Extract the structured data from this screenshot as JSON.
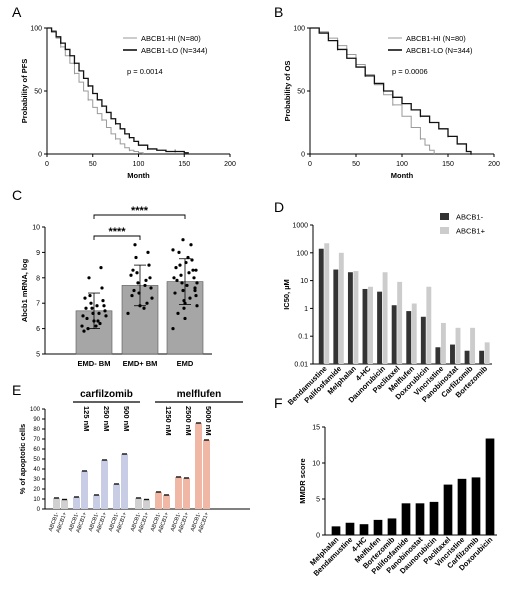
{
  "panels": {
    "a": "A",
    "b": "B",
    "c": "C",
    "d": "D",
    "e": "E",
    "f": "F"
  },
  "chart_data": [
    {
      "id": "A",
      "type": "line",
      "xlabel": "Month",
      "ylabel": "Probability of PFS",
      "xlim": [
        0,
        200
      ],
      "ylim": [
        0,
        100
      ],
      "xticks": [
        0,
        50,
        100,
        150,
        200
      ],
      "yticks": [
        0,
        50,
        100
      ],
      "annotation": "p = 0.0014",
      "legend_position": "top-right",
      "series": [
        {
          "name": "ABCB1-HI (N=80)",
          "color": "#9a9a9a",
          "x": [
            0,
            5,
            10,
            15,
            20,
            25,
            30,
            35,
            40,
            45,
            50,
            55,
            60,
            65,
            70,
            75,
            80,
            85,
            90,
            95,
            100,
            105
          ],
          "y": [
            100,
            98,
            92,
            85,
            78,
            72,
            64,
            57,
            50,
            43,
            37,
            32,
            27,
            21,
            16,
            12,
            8,
            5,
            3,
            2,
            1,
            0
          ]
        },
        {
          "name": "ABCB1-LO (N=344)",
          "color": "#111111",
          "x": [
            0,
            5,
            10,
            15,
            20,
            25,
            30,
            35,
            40,
            45,
            50,
            55,
            60,
            65,
            70,
            75,
            80,
            85,
            90,
            95,
            100,
            110,
            120,
            130,
            140,
            150,
            155
          ],
          "y": [
            100,
            97,
            93,
            88,
            83,
            78,
            72,
            66,
            60,
            54,
            48,
            43,
            38,
            33,
            28,
            24,
            20,
            16,
            13,
            10,
            7,
            4,
            3,
            2,
            2,
            1,
            1
          ]
        }
      ]
    },
    {
      "id": "B",
      "type": "line",
      "xlabel": "Month",
      "ylabel": "Probability of OS",
      "xlim": [
        0,
        200
      ],
      "ylim": [
        0,
        100
      ],
      "xticks": [
        0,
        50,
        100,
        150,
        200
      ],
      "yticks": [
        0,
        50,
        100
      ],
      "annotation": "p = 0.0006",
      "legend_position": "top-right",
      "series": [
        {
          "name": "ABCB1-HI (N=80)",
          "color": "#9a9a9a",
          "x": [
            0,
            10,
            20,
            30,
            40,
            50,
            60,
            70,
            80,
            90,
            100,
            110,
            120,
            125,
            130,
            135
          ],
          "y": [
            100,
            97,
            92,
            86,
            79,
            71,
            63,
            55,
            47,
            39,
            30,
            21,
            12,
            7,
            3,
            0
          ]
        },
        {
          "name": "ABCB1-LO (N=344)",
          "color": "#111111",
          "x": [
            0,
            10,
            20,
            30,
            40,
            50,
            60,
            70,
            80,
            90,
            100,
            110,
            120,
            130,
            140,
            150,
            160,
            170,
            175
          ],
          "y": [
            100,
            96,
            90,
            83,
            76,
            69,
            62,
            56,
            50,
            45,
            40,
            35,
            30,
            25,
            20,
            14,
            8,
            2,
            0
          ]
        }
      ]
    },
    {
      "id": "C",
      "type": "bar",
      "ylabel": "Abcb1 mRNA, log",
      "categories": [
        "EMD- BM",
        "EMD+ BM",
        "EMD"
      ],
      "values": [
        6.7,
        7.7,
        7.85
      ],
      "errors": [
        0.7,
        0.8,
        0.9
      ],
      "ylim": [
        5,
        10
      ],
      "yticks": [
        5,
        6,
        7,
        8,
        9,
        10
      ],
      "significance": [
        {
          "from": 0,
          "to": 1,
          "label": "****"
        },
        {
          "from": 0,
          "to": 2,
          "label": "****"
        }
      ],
      "points": [
        [
          6.1,
          6.3,
          6.5,
          6.6,
          6.7,
          6.8,
          6.9,
          7.0,
          7.1,
          7.3,
          7.6,
          8.0,
          8.4,
          6.0,
          6.2,
          6.4,
          6.6,
          6.8,
          6.3,
          7.2,
          6.9,
          5.9,
          6.1,
          6.5
        ],
        [
          6.6,
          6.9,
          7.2,
          7.4,
          7.6,
          7.8,
          8.0,
          8.2,
          8.5,
          8.8,
          9.0,
          9.3,
          7.0,
          7.5,
          7.9,
          8.3,
          7.7,
          7.3,
          6.8,
          8.1
        ],
        [
          6.0,
          6.4,
          6.9,
          7.1,
          7.3,
          7.5,
          7.6,
          7.8,
          8.0,
          8.1,
          8.3,
          8.5,
          8.7,
          9.0,
          9.3,
          6.6,
          7.2,
          7.9,
          8.2,
          8.4,
          8.8,
          7.4,
          7.7,
          8.0,
          8.6,
          9.1,
          7.0,
          7.8,
          6.8,
          8.3,
          9.5,
          7.5
        ]
      ]
    },
    {
      "id": "D",
      "type": "bar",
      "ylabel": "IC50, µM",
      "yscale": "log",
      "ylim": [
        0.01,
        1000
      ],
      "yticks": [
        "0.01",
        "0.1",
        "1",
        "10",
        "100",
        "1000"
      ],
      "legend_position": "top-right",
      "categories": [
        "Bendamustine",
        "Palifosfamide",
        "Melphalan",
        "4-HC",
        "Daunorubicin",
        "Paclitaxel",
        "Melflufen",
        "Doxorubicin",
        "Vincristine",
        "Panobinostat",
        "Carfilzomib",
        "Bortezomib"
      ],
      "series": [
        {
          "name": "ABCB1-",
          "color": "#333333",
          "values": [
            140,
            25,
            20,
            5,
            4,
            1.3,
            0.8,
            0.5,
            0.04,
            0.05,
            0.03,
            0.03
          ]
        },
        {
          "name": "ABCB1+",
          "color": "#cccccc",
          "values": [
            220,
            100,
            22,
            6,
            20,
            9,
            1.5,
            6,
            0.3,
            0.2,
            0.2,
            0.06
          ]
        }
      ]
    },
    {
      "id": "E",
      "type": "bar",
      "ylabel": "% of apoptotic cells",
      "ylim": [
        0,
        100
      ],
      "yticks": [
        0,
        10,
        20,
        30,
        40,
        50,
        60,
        70,
        80,
        90,
        100
      ],
      "groups": [
        {
          "label": "carfilzomib",
          "concentrations": [
            "125 nM",
            "250 nM",
            "500 nM"
          ]
        },
        {
          "label": "melflufen",
          "concentrations": [
            "1250 nM",
            "2500 nM",
            "5000 nM"
          ]
        }
      ],
      "tick_labels": [
        "ABCB1-",
        "ABCB1+",
        "ABCB1-",
        "ABCB1+",
        "ABCB1-",
        "ABCB1+",
        "ABCB1-",
        "ABCB1+",
        "ABCB1-",
        "ABCB1+",
        "ABCB1-",
        "ABCB1+",
        "ABCB1-",
        "ABCB1+",
        "ABCB1-",
        "ABCB1+"
      ],
      "values": [
        11,
        9.5,
        12,
        38,
        14,
        49,
        25,
        55,
        11,
        9.5,
        17,
        14,
        32,
        31,
        86,
        69
      ],
      "colors": [
        "#d0d0d0",
        "#d0d0d0",
        "#c8cce4",
        "#c8cce4",
        "#c8cce4",
        "#c8cce4",
        "#c8cce4",
        "#c8cce4",
        "#d0d0d0",
        "#d0d0d0",
        "#f0b8a4",
        "#f0b8a4",
        "#f0b8a4",
        "#f0b8a4",
        "#f0b8a4",
        "#f0b8a4"
      ]
    },
    {
      "id": "F",
      "type": "bar",
      "ylabel": "MMDR score",
      "ylim": [
        0,
        15
      ],
      "yticks": [
        0,
        5,
        10,
        15
      ],
      "categories": [
        "Melphalan",
        "Bendamustine",
        "4-HC",
        "Melflufen",
        "Bortezomib",
        "Palifosfamide",
        "Panobinostat",
        "Daunorubicin",
        "Paclitaxel",
        "Vincristine",
        "Carfilzomib",
        "Doxorubicin"
      ],
      "values": [
        1.2,
        1.7,
        1.5,
        2.1,
        2.3,
        4.4,
        4.4,
        4.6,
        7.0,
        7.8,
        8.0,
        13.4
      ],
      "color": "#000000"
    }
  ]
}
